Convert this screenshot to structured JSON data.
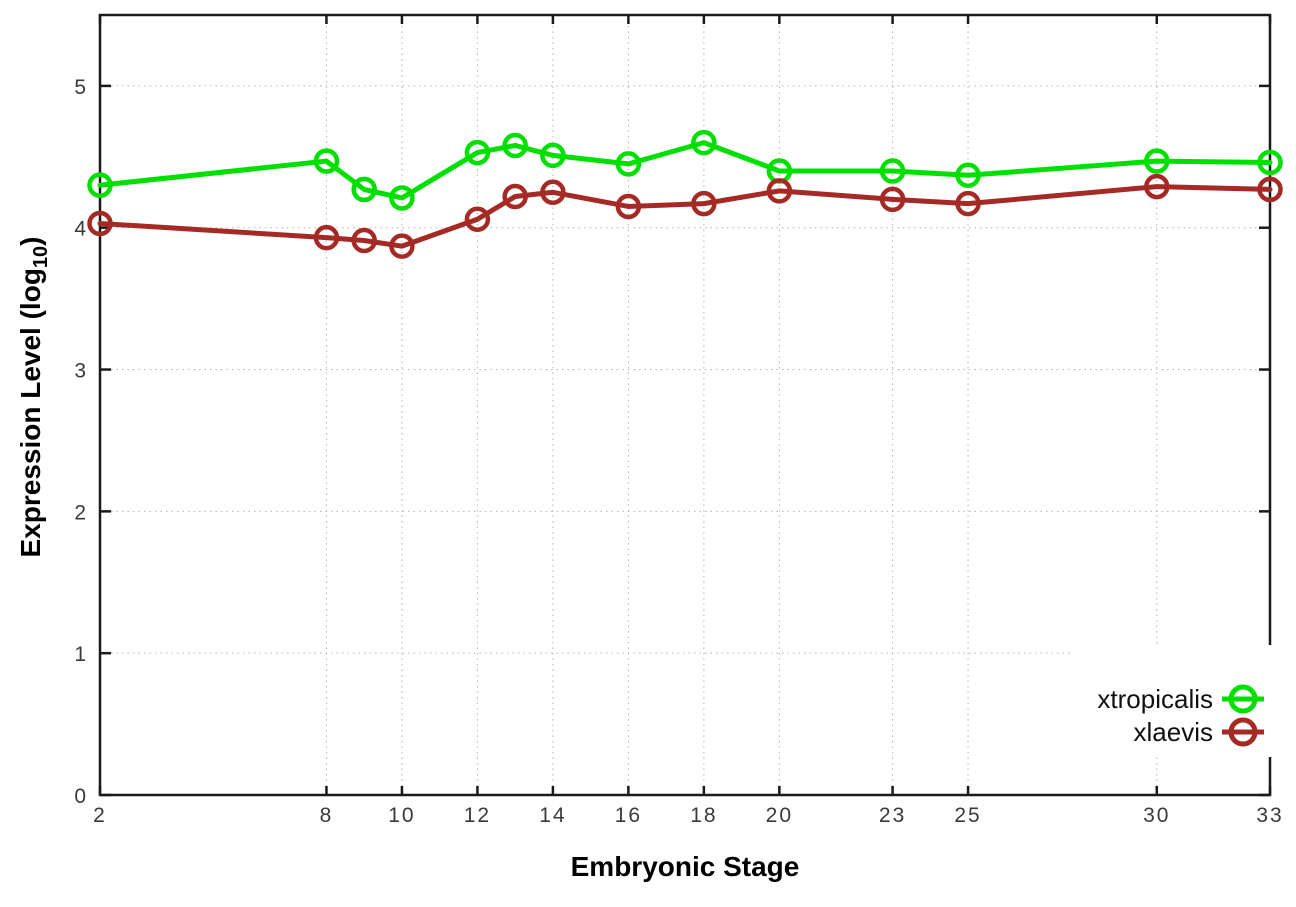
{
  "chart_data": {
    "type": "line",
    "title": "",
    "xlabel": "Embryonic Stage",
    "ylabel": "Expression Level (log10)",
    "ylabel_parts": {
      "pre": "Expression Level (log",
      "sub": "10",
      "post": ")"
    },
    "xlim": [
      2,
      33
    ],
    "ylim": [
      0,
      5.5
    ],
    "x_ticks": [
      2,
      8,
      10,
      12,
      14,
      16,
      18,
      20,
      23,
      25,
      30,
      33
    ],
    "y_ticks": [
      0,
      1,
      2,
      3,
      4,
      5
    ],
    "grid": true,
    "legend_position": "inside-bottom-right",
    "x": [
      2,
      8,
      9,
      10,
      12,
      13,
      14,
      16,
      18,
      20,
      23,
      25,
      30,
      33
    ],
    "series": [
      {
        "name": "xtropicalis",
        "color": "#00e000",
        "values": [
          4.3,
          4.47,
          4.27,
          4.21,
          4.53,
          4.58,
          4.51,
          4.45,
          4.6,
          4.4,
          4.4,
          4.37,
          4.47,
          4.46
        ]
      },
      {
        "name": "xlaevis",
        "color": "#a52a25",
        "values": [
          4.03,
          3.93,
          3.91,
          3.87,
          4.06,
          4.22,
          4.25,
          4.15,
          4.17,
          4.26,
          4.2,
          4.17,
          4.29,
          4.27
        ]
      }
    ],
    "colors": {
      "grid": "#b4b4b4",
      "border": "#1a1a1a",
      "tick_label": "#3a3a3a",
      "legend_bg": "#ffffff"
    }
  }
}
